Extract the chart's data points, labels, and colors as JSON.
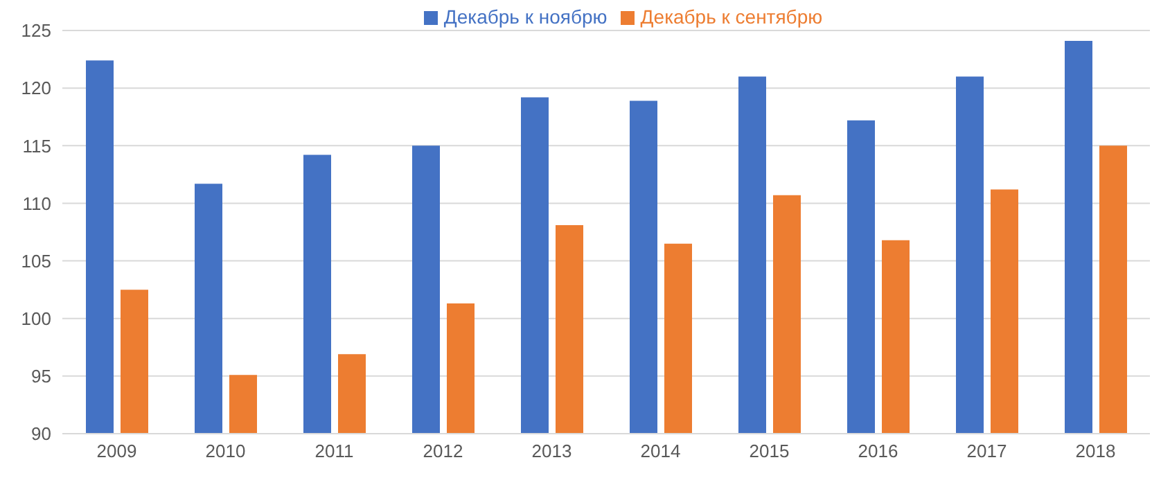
{
  "chart_data": {
    "type": "bar",
    "categories": [
      "2009",
      "2010",
      "2011",
      "2012",
      "2013",
      "2014",
      "2015",
      "2016",
      "2017",
      "2018"
    ],
    "series": [
      {
        "name": "Декабрь к ноябрю",
        "color": "#4472c4",
        "values": [
          122.4,
          111.7,
          114.2,
          115.0,
          119.2,
          118.9,
          121.0,
          117.2,
          121.0,
          124.1
        ]
      },
      {
        "name": "Декабрь к сентябрю",
        "color": "#ed7d31",
        "values": [
          102.5,
          95.1,
          96.9,
          101.3,
          108.1,
          106.5,
          110.7,
          106.8,
          111.2,
          115.0
        ]
      }
    ],
    "ylim": [
      90,
      125
    ],
    "yticks": [
      90,
      95,
      100,
      105,
      110,
      115,
      120,
      125
    ],
    "grid": "y",
    "legend": "top"
  }
}
